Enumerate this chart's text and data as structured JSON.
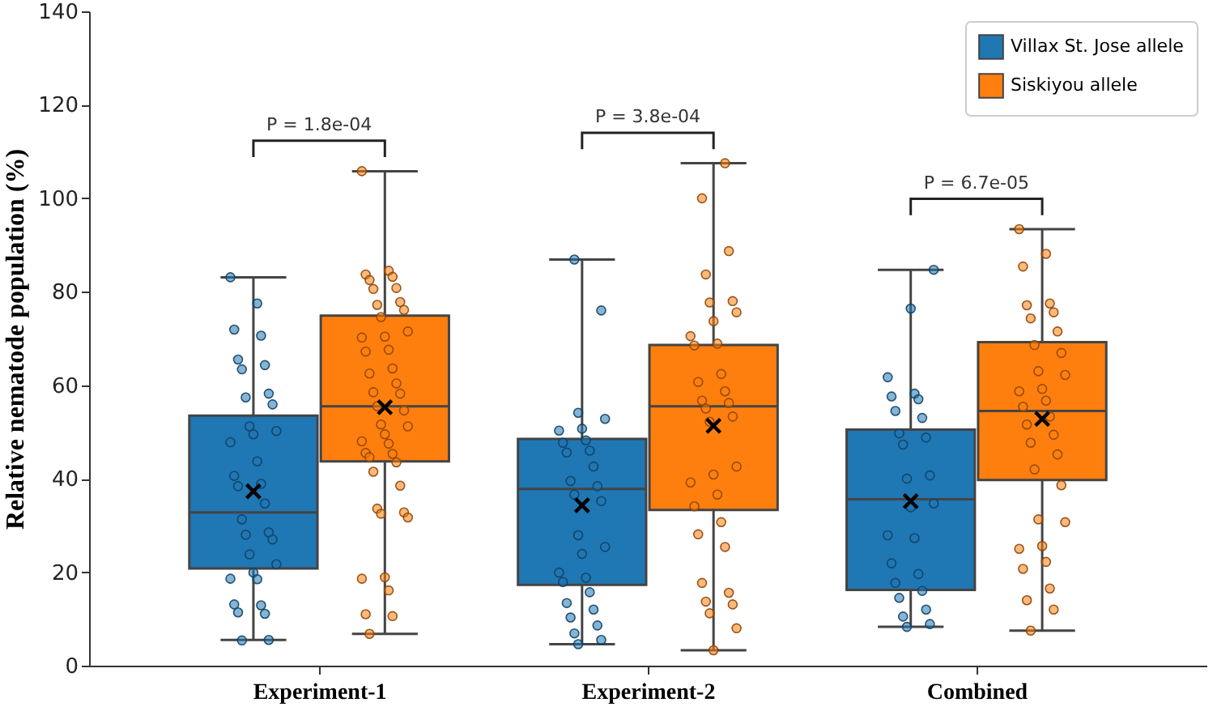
{
  "chart_data": {
    "type": "box",
    "ylabel": "Relative nematode population (%)",
    "categories": [
      "Experiment-1",
      "Experiment-2",
      "Combined"
    ],
    "ylim": [
      0,
      140
    ],
    "yticks": [
      0,
      20,
      40,
      60,
      80,
      100,
      120,
      140
    ],
    "grid": false,
    "legend": "top right",
    "annotations": [
      "P = 1.8e-04",
      "P = 3.8e-04",
      "P = 6.7e-05"
    ],
    "series": [
      {
        "name": "Villax St. Jose allele",
        "color": "#1f77b4",
        "boxes": [
          {
            "low": 5.5,
            "q1": 20.8,
            "median": 32.8,
            "q3": 53.5,
            "high": 83.1,
            "mean": 37.3
          },
          {
            "low": 4.6,
            "q1": 17.3,
            "median": 37.8,
            "q3": 48.5,
            "high": 86.9,
            "mean": 34.3
          },
          {
            "low": 8.3,
            "q1": 16.2,
            "median": 35.6,
            "q3": 50.5,
            "high": 84.7,
            "mean": 35.2
          }
        ]
      },
      {
        "name": "Siskiyou allele",
        "color": "#ff7f0e",
        "boxes": [
          {
            "low": 6.8,
            "q1": 43.7,
            "median": 55.5,
            "q3": 74.9,
            "high": 105.8,
            "mean": 55.3
          },
          {
            "low": 3.3,
            "q1": 33.3,
            "median": 55.5,
            "q3": 68.6,
            "high": 107.5,
            "mean": 51.3
          },
          {
            "low": 7.5,
            "q1": 39.7,
            "median": 54.5,
            "q3": 69.2,
            "high": 93.4,
            "mean": 52.8
          }
        ]
      },
      {
        "type": "scatter",
        "color": "#1f77b4",
        "x": [
          "Experiment-1",
          "Experiment-1",
          "Experiment-1",
          "Experiment-1",
          "Experiment-1",
          "Experiment-1",
          "Experiment-1",
          "Experiment-1",
          "Experiment-1",
          "Experiment-1",
          "Experiment-1",
          "Experiment-1",
          "Experiment-1",
          "Experiment-1",
          "Experiment-1",
          "Experiment-1",
          "Experiment-1",
          "Experiment-1",
          "Experiment-1",
          "Experiment-1",
          "Experiment-1",
          "Experiment-1",
          "Experiment-1",
          "Experiment-1",
          "Experiment-1",
          "Experiment-1",
          "Experiment-1",
          "Experiment-1",
          "Experiment-1",
          "Experiment-1",
          "Experiment-1",
          "Experiment-1",
          "Experiment-1",
          "Experiment-1",
          "Experiment-2",
          "Experiment-2",
          "Experiment-2",
          "Experiment-2",
          "Experiment-2",
          "Experiment-2",
          "Experiment-2",
          "Experiment-2",
          "Experiment-2",
          "Experiment-2",
          "Experiment-2",
          "Experiment-2",
          "Experiment-2",
          "Experiment-2",
          "Experiment-2",
          "Experiment-2",
          "Experiment-2",
          "Experiment-2",
          "Experiment-2",
          "Experiment-2",
          "Experiment-2",
          "Experiment-2",
          "Experiment-2",
          "Experiment-2",
          "Experiment-2",
          "Experiment-2",
          "Experiment-2",
          "Experiment-2",
          "Experiment-2",
          "Combined",
          "Combined",
          "Combined",
          "Combined",
          "Combined",
          "Combined",
          "Combined",
          "Combined",
          "Combined",
          "Combined",
          "Combined",
          "Combined",
          "Combined",
          "Combined",
          "Combined",
          "Combined",
          "Combined",
          "Combined",
          "Combined",
          "Combined",
          "Combined",
          "Combined",
          "Combined",
          "Combined",
          "Combined",
          "Combined"
        ],
        "values": [
          83.1,
          77.5,
          71.9,
          70.6,
          65.5,
          64.3,
          63.4,
          58.2,
          57.4,
          55.9,
          51.2,
          50.2,
          49.5,
          47.8,
          43.7,
          40.6,
          38.9,
          38.4,
          34.7,
          31.3,
          28.5,
          28,
          27,
          23.8,
          21.7,
          19.9,
          18.6,
          18.5,
          13.1,
          12.9,
          11.4,
          11.1,
          5.4,
          5.5,
          86.9,
          76,
          54.1,
          52.8,
          50.7,
          50.3,
          48.2,
          47.7,
          46,
          45.6,
          42.6,
          39.5,
          38.4,
          36.6,
          35.2,
          27.9,
          25.4,
          23.9,
          19.9,
          18.8,
          17.9,
          15.7,
          13.4,
          12,
          10.3,
          8.6,
          6.9,
          5.5,
          4.6,
          84.7,
          76.4,
          61.7,
          58.2,
          57.6,
          57,
          54.5,
          53,
          49.7,
          48.8,
          47.3,
          40.7,
          40,
          34.7,
          33.9,
          27.9,
          27.3,
          21.9,
          19.6,
          17.7,
          16,
          14.5,
          12,
          10.5,
          8.9,
          8.3
        ]
      },
      {
        "type": "scatter",
        "color": "#ff7f0e",
        "x": [
          "Experiment-1",
          "Experiment-1",
          "Experiment-1",
          "Experiment-1",
          "Experiment-1",
          "Experiment-1",
          "Experiment-1",
          "Experiment-1",
          "Experiment-1",
          "Experiment-1",
          "Experiment-1",
          "Experiment-1",
          "Experiment-1",
          "Experiment-1",
          "Experiment-1",
          "Experiment-1",
          "Experiment-1",
          "Experiment-1",
          "Experiment-1",
          "Experiment-1",
          "Experiment-1",
          "Experiment-1",
          "Experiment-1",
          "Experiment-1",
          "Experiment-1",
          "Experiment-1",
          "Experiment-1",
          "Experiment-1",
          "Experiment-1",
          "Experiment-1",
          "Experiment-1",
          "Experiment-1",
          "Experiment-1",
          "Experiment-1",
          "Experiment-1",
          "Experiment-1",
          "Experiment-1",
          "Experiment-1",
          "Experiment-1",
          "Experiment-1",
          "Experiment-1",
          "Experiment-1",
          "Experiment-1",
          "Experiment-1",
          "Experiment-2",
          "Experiment-2",
          "Experiment-2",
          "Experiment-2",
          "Experiment-2",
          "Experiment-2",
          "Experiment-2",
          "Experiment-2",
          "Experiment-2",
          "Experiment-2",
          "Experiment-2",
          "Experiment-2",
          "Experiment-2",
          "Experiment-2",
          "Experiment-2",
          "Experiment-2",
          "Experiment-2",
          "Experiment-2",
          "Experiment-2",
          "Experiment-2",
          "Experiment-2",
          "Experiment-2",
          "Experiment-2",
          "Experiment-2",
          "Experiment-2",
          "Experiment-2",
          "Experiment-2",
          "Experiment-2",
          "Experiment-2",
          "Experiment-2",
          "Experiment-2",
          "Experiment-2",
          "Experiment-2",
          "Experiment-2",
          "Combined",
          "Combined",
          "Combined",
          "Combined",
          "Combined",
          "Combined",
          "Combined",
          "Combined",
          "Combined",
          "Combined",
          "Combined",
          "Combined",
          "Combined",
          "Combined",
          "Combined",
          "Combined",
          "Combined",
          "Combined",
          "Combined",
          "Combined",
          "Combined",
          "Combined",
          "Combined",
          "Combined",
          "Combined",
          "Combined",
          "Combined",
          "Combined",
          "Combined",
          "Combined",
          "Combined",
          "Combined",
          "Combined"
        ],
        "values": [
          105.8,
          84.5,
          83.7,
          83.2,
          82.5,
          80.8,
          80.6,
          77.8,
          77.2,
          76.1,
          74.6,
          71.5,
          70.4,
          70.2,
          67.6,
          67.2,
          63.6,
          62.5,
          60.4,
          58.5,
          58.2,
          55.5,
          54.6,
          51.6,
          51.2,
          49.5,
          48,
          47.5,
          45.5,
          45.3,
          44.6,
          43.5,
          41.5,
          38.5,
          33.6,
          32.8,
          32.5,
          31.7,
          18.9,
          18.6,
          16.1,
          11,
          10.6,
          6.8,
          107.5,
          100,
          88.7,
          83.7,
          78,
          77.7,
          75.6,
          73.7,
          70.5,
          68.9,
          68.5,
          62.4,
          60.7,
          58.7,
          56.7,
          56.2,
          55,
          53.3,
          52.2,
          42.6,
          40.9,
          39.2,
          36.6,
          34.1,
          30.7,
          28.1,
          25.4,
          17.7,
          15.6,
          13.7,
          13.1,
          11.2,
          8,
          3.3,
          93.4,
          88.1,
          85.4,
          77.5,
          77.1,
          75.6,
          74.3,
          71.5,
          68.6,
          66.9,
          63,
          62.2,
          59.2,
          58.7,
          56.7,
          55.4,
          53.3,
          51.6,
          49.4,
          47.7,
          45.2,
          42,
          38.6,
          31.3,
          30.7,
          25.6,
          25,
          22.2,
          20.7,
          16.5,
          14,
          12,
          7.5
        ]
      }
    ]
  }
}
